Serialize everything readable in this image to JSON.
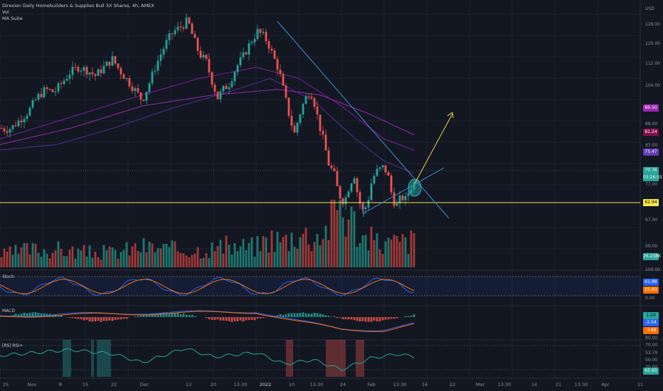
{
  "chart_data": {
    "type": "candlestick",
    "title": "Direxion Daily Homebuilders & Supplies Bull 3X Shares, 4h, AMEX",
    "indicators": [
      "Vol",
      "MA Suite",
      "Stoch",
      "MACD",
      "[RS] RSI+"
    ],
    "currency": "USD",
    "price_axis_ticks": [
      "128.00",
      "120.00",
      "112.00",
      "104.00",
      "96.00",
      "88.00",
      "83.00",
      "77.00",
      "67.00",
      "59.00",
      "55.00"
    ],
    "x_ticks": [
      "25",
      "Nov",
      "8",
      "15",
      "22",
      "Dec",
      "13",
      "20",
      "13:30",
      "2022",
      "10",
      "13:30",
      "24",
      "Feb",
      "13:30",
      "14",
      "22",
      "Mar",
      "13:30",
      "14",
      "21",
      "13:30",
      "Apr",
      "11"
    ],
    "price_badges": [
      {
        "value": "89.50",
        "color": "#9c27b0"
      },
      {
        "value": "81.24",
        "color": "#880e4f"
      },
      {
        "value": "75.47",
        "color": "#673ab7"
      },
      {
        "value": "70.76",
        "color": "#26a69a"
      },
      {
        "value": "03:26:55",
        "color": "#26a69a"
      },
      {
        "value": "62.94",
        "color": "#f7e84a",
        "text": "#000000"
      }
    ],
    "volume_badge": {
      "value": "26.238K",
      "color": "#26a69a"
    },
    "stoch": {
      "ticks": [
        "100.00",
        "50.00",
        "0.00"
      ],
      "badges": [
        {
          "value": "61.88",
          "color": "#2962ff"
        },
        {
          "value": "55.83",
          "color": "#ff6d00"
        }
      ]
    },
    "macd": {
      "badges": [
        {
          "value": "1.14",
          "color": "#26a69a",
          "text": "#000000"
        },
        {
          "value": "-2.54",
          "color": "#2962ff"
        },
        {
          "value": "-3.68",
          "color": "#ff6d00"
        }
      ]
    },
    "rsi": {
      "ticks": [
        "80.00",
        "70.00",
        "53.79",
        "50.00",
        "30.00"
      ],
      "badge": {
        "value": "65.93",
        "color": "#26a69a"
      }
    },
    "support_level": 62.94,
    "close_anchors": [
      [
        0,
        92
      ],
      [
        8,
        91.5
      ],
      [
        16,
        92
      ],
      [
        28,
        95
      ],
      [
        40,
        98
      ],
      [
        52,
        103
      ],
      [
        64,
        106
      ],
      [
        76,
        105
      ],
      [
        86,
        108
      ],
      [
        98,
        112
      ],
      [
        110,
        114
      ],
      [
        122,
        113
      ],
      [
        134,
        111
      ],
      [
        146,
        114
      ],
      [
        158,
        117
      ],
      [
        168,
        113
      ],
      [
        180,
        109
      ],
      [
        192,
        105
      ],
      [
        200,
        102
      ],
      [
        208,
        107
      ],
      [
        218,
        114
      ],
      [
        228,
        120
      ],
      [
        236,
        124
      ],
      [
        244,
        127
      ],
      [
        256,
        129
      ],
      [
        264,
        131
      ],
      [
        270,
        126
      ],
      [
        280,
        119
      ],
      [
        290,
        116
      ],
      [
        298,
        109
      ],
      [
        306,
        103
      ],
      [
        314,
        106
      ],
      [
        322,
        108
      ],
      [
        332,
        114
      ],
      [
        342,
        118
      ],
      [
        352,
        123
      ],
      [
        362,
        127
      ],
      [
        372,
        125
      ],
      [
        378,
        122
      ],
      [
        384,
        118
      ],
      [
        392,
        113
      ],
      [
        400,
        104
      ],
      [
        408,
        95
      ],
      [
        414,
        90
      ],
      [
        420,
        96
      ],
      [
        428,
        102
      ],
      [
        436,
        106
      ],
      [
        442,
        101
      ],
      [
        448,
        94
      ],
      [
        456,
        86
      ],
      [
        462,
        79
      ],
      [
        470,
        75
      ],
      [
        476,
        68
      ],
      [
        484,
        65
      ],
      [
        492,
        72
      ],
      [
        498,
        75
      ],
      [
        504,
        66
      ],
      [
        510,
        62
      ],
      [
        516,
        64
      ],
      [
        522,
        72
      ],
      [
        528,
        76
      ],
      [
        534,
        77
      ],
      [
        540,
        78
      ],
      [
        546,
        74
      ],
      [
        552,
        66
      ],
      [
        558,
        64
      ],
      [
        564,
        67
      ],
      [
        570,
        66
      ],
      [
        576,
        70
      ],
      [
        582,
        72
      ]
    ],
    "volume_anchors": [
      [
        0,
        4
      ],
      [
        40,
        6
      ],
      [
        80,
        6
      ],
      [
        120,
        5
      ],
      [
        160,
        5
      ],
      [
        200,
        7
      ],
      [
        240,
        6
      ],
      [
        280,
        6
      ],
      [
        320,
        7
      ],
      [
        360,
        7
      ],
      [
        380,
        10
      ],
      [
        400,
        9
      ],
      [
        420,
        12
      ],
      [
        440,
        10
      ],
      [
        460,
        13
      ],
      [
        470,
        20
      ],
      [
        476,
        24
      ],
      [
        484,
        18
      ],
      [
        496,
        16
      ],
      [
        510,
        10
      ],
      [
        540,
        8
      ],
      [
        580,
        9
      ]
    ]
  }
}
